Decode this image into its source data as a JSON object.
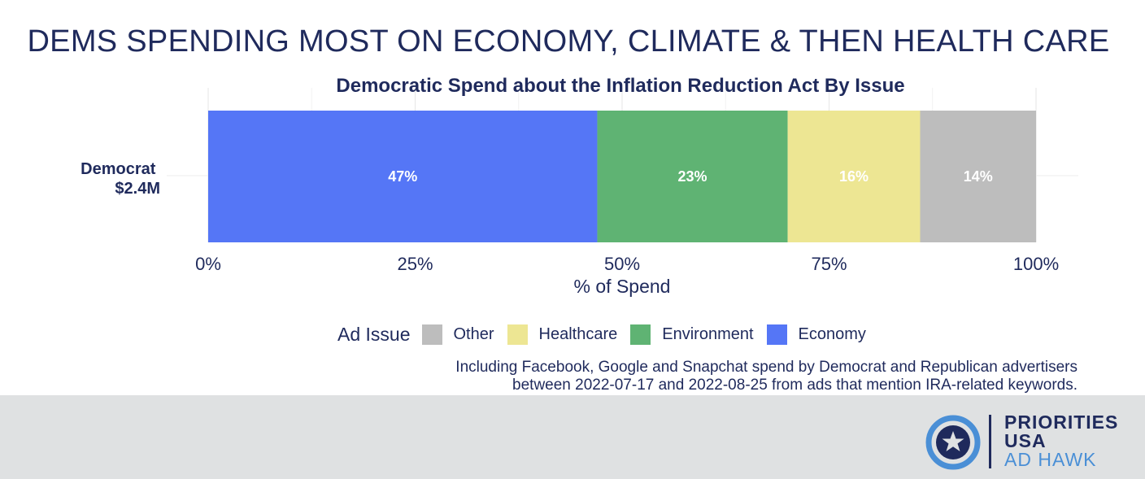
{
  "headline": "DEMS SPENDING MOST ON ECONOMY, CLIMATE & THEN HEALTH CARE",
  "chart_data": {
    "type": "bar",
    "orientation": "horizontal",
    "stacked": true,
    "title": "Democratic Spend about the Inflation Reduction Act By Issue",
    "categories": [
      "Democrat\n$2.4M"
    ],
    "series": [
      {
        "name": "Economy",
        "values": [
          47
        ],
        "label": "47%",
        "color": "#5576f6"
      },
      {
        "name": "Environment",
        "values": [
          23
        ],
        "label": "23%",
        "color": "#5fb373"
      },
      {
        "name": "Healthcare",
        "values": [
          16
        ],
        "label": "16%",
        "color": "#ede693"
      },
      {
        "name": "Other",
        "values": [
          14
        ],
        "label": "14%",
        "color": "#bdbdbd"
      }
    ],
    "xlabel": "% of Spend",
    "ylabel": "",
    "xlim": [
      0,
      100
    ],
    "xticks": [
      0,
      25,
      50,
      75,
      100
    ],
    "xtick_labels": [
      "0%",
      "25%",
      "50%",
      "75%",
      "100%"
    ],
    "grid": true,
    "legend_placement": "bottom"
  },
  "legend": {
    "title": "Ad Issue",
    "items": [
      {
        "label": "Other",
        "color": "#bdbdbd"
      },
      {
        "label": "Healthcare",
        "color": "#ede693"
      },
      {
        "label": "Environment",
        "color": "#5fb373"
      },
      {
        "label": "Economy",
        "color": "#5576f6"
      }
    ]
  },
  "note": {
    "line1": "Including Facebook, Google and Snapchat spend by Democrat and Republican advertisers",
    "line2": "between 2022-07-17 and 2022-08-25 from ads that mention IRA-related keywords."
  },
  "logo": {
    "line1": "PRIORITIES",
    "line2": "USA",
    "line3": "AD HAWK",
    "icon": "star-circle-icon",
    "colors": {
      "navy": "#1f2a5c",
      "blue": "#4a8fd6"
    }
  }
}
